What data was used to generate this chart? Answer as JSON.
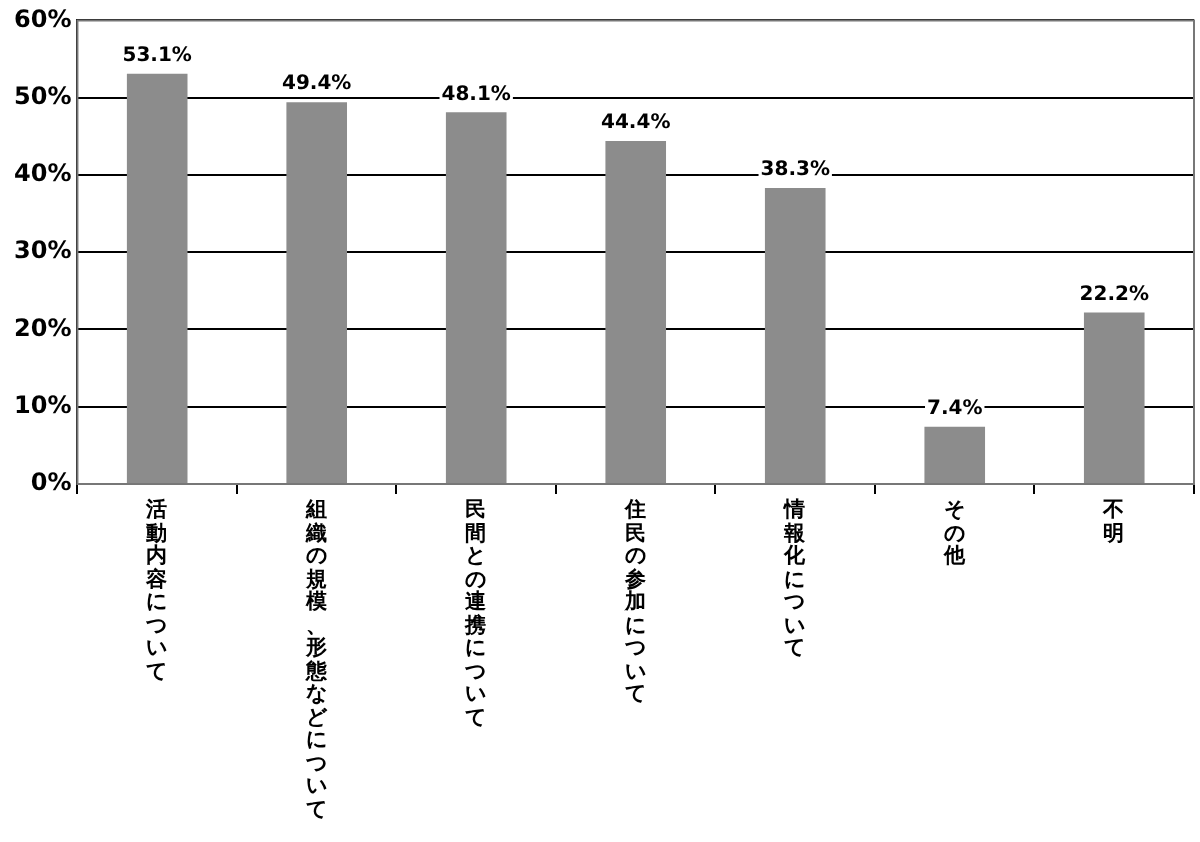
{
  "chart_data": {
    "type": "bar",
    "categories": [
      "活動内容について",
      "組織の規模、形態などについて",
      "民間との連携について",
      "住民の参加について",
      "情報化について",
      "その他",
      "不明"
    ],
    "values": [
      53.1,
      49.4,
      48.1,
      44.4,
      38.3,
      7.4,
      22.2
    ],
    "value_labels": [
      "53.1%",
      "49.4%",
      "48.1%",
      "44.4%",
      "38.3%",
      "7.4%",
      "22.2%"
    ],
    "color": "#8c8c8c",
    "ylim": [
      0,
      60
    ],
    "yticks": [
      {
        "value": 0,
        "label": "0%"
      },
      {
        "value": 10,
        "label": "10%"
      },
      {
        "value": 20,
        "label": "20%"
      },
      {
        "value": 30,
        "label": "30%"
      },
      {
        "value": 40,
        "label": "40%"
      },
      {
        "value": 50,
        "label": "50%"
      },
      {
        "value": 60,
        "label": "60%"
      }
    ],
    "grid": "y",
    "legend": false
  }
}
